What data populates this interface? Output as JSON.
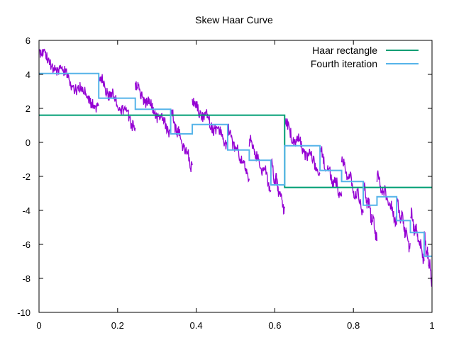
{
  "chart_data": {
    "type": "line",
    "title": "Skew Haar Curve",
    "xlabel": "",
    "ylabel": "",
    "xlim": [
      0,
      1
    ],
    "ylim": [
      -10,
      6
    ],
    "xticks": [
      0,
      0.2,
      0.4,
      0.6,
      0.8,
      1
    ],
    "xtick_labels": [
      "0",
      "0.2",
      "0.4",
      "0.6",
      "0.8",
      "1"
    ],
    "yticks": [
      6,
      4,
      2,
      0,
      -2,
      -4,
      -6,
      -8,
      -10
    ],
    "ytick_labels": [
      "6",
      "4",
      "2",
      "0",
      "-2",
      "-4",
      "-6",
      "-8",
      "-10"
    ],
    "grid": false,
    "legend_position": "top-right",
    "series": [
      {
        "name": "Haar rectangle",
        "color": "#009e73",
        "style": "step",
        "steps": [
          {
            "x0": 0,
            "x1": 0.625,
            "y": 1.6
          },
          {
            "x0": 0.625,
            "x1": 1,
            "y": -2.65
          }
        ]
      },
      {
        "name": "Fourth iteration",
        "color": "#56b4e9",
        "style": "step",
        "steps": [
          {
            "x0": 0,
            "x1": 0.152,
            "y": 4.05
          },
          {
            "x0": 0.152,
            "x1": 0.245,
            "y": 2.6
          },
          {
            "x0": 0.245,
            "x1": 0.335,
            "y": 1.95
          },
          {
            "x0": 0.335,
            "x1": 0.39,
            "y": 0.5
          },
          {
            "x0": 0.39,
            "x1": 0.48,
            "y": 1.05
          },
          {
            "x0": 0.48,
            "x1": 0.535,
            "y": -0.45
          },
          {
            "x0": 0.535,
            "x1": 0.59,
            "y": -1.05
          },
          {
            "x0": 0.59,
            "x1": 0.625,
            "y": -2.5
          },
          {
            "x0": 0.625,
            "x1": 0.715,
            "y": -0.2
          },
          {
            "x0": 0.715,
            "x1": 0.77,
            "y": -1.65
          },
          {
            "x0": 0.77,
            "x1": 0.825,
            "y": -2.3
          },
          {
            "x0": 0.825,
            "x1": 0.86,
            "y": -3.7
          },
          {
            "x0": 0.86,
            "x1": 0.91,
            "y": -3.2
          },
          {
            "x0": 0.91,
            "x1": 0.945,
            "y": -4.6
          },
          {
            "x0": 0.945,
            "x1": 0.98,
            "y": -5.3
          },
          {
            "x0": 0.98,
            "x1": 1,
            "y": -6.7
          }
        ]
      },
      {
        "name": "",
        "color": "#9400d3",
        "style": "jagged",
        "segments": [
          {
            "x0": 0,
            "x1": 0.152,
            "y0": 5.3,
            "y1": 2.1
          },
          {
            "x0": 0.152,
            "x1": 0.245,
            "y0": 3.7,
            "y1": 1.0
          },
          {
            "x0": 0.245,
            "x1": 0.335,
            "y0": 3.2,
            "y1": 0.7
          },
          {
            "x0": 0.335,
            "x1": 0.39,
            "y0": 1.7,
            "y1": -1.4
          },
          {
            "x0": 0.39,
            "x1": 0.48,
            "y0": 2.3,
            "y1": 0.0
          },
          {
            "x0": 0.48,
            "x1": 0.535,
            "y0": 0.7,
            "y1": -1.9
          },
          {
            "x0": 0.535,
            "x1": 0.59,
            "y0": 0.1,
            "y1": -2.6
          },
          {
            "x0": 0.59,
            "x1": 0.625,
            "y0": -1.3,
            "y1": -4.0
          },
          {
            "x0": 0.625,
            "x1": 0.715,
            "y0": 1.0,
            "y1": -1.6
          },
          {
            "x0": 0.715,
            "x1": 0.77,
            "y0": -0.6,
            "y1": -3.2
          },
          {
            "x0": 0.77,
            "x1": 0.825,
            "y0": -1.1,
            "y1": -3.9
          },
          {
            "x0": 0.825,
            "x1": 0.86,
            "y0": -2.6,
            "y1": -5.5
          },
          {
            "x0": 0.86,
            "x1": 0.91,
            "y0": -2.0,
            "y1": -4.6
          },
          {
            "x0": 0.91,
            "x1": 0.945,
            "y0": -3.5,
            "y1": -6.2
          },
          {
            "x0": 0.945,
            "x1": 0.98,
            "y0": -4.2,
            "y1": -6.9
          },
          {
            "x0": 0.98,
            "x1": 1,
            "y0": -5.6,
            "y1": -8.1
          }
        ]
      }
    ]
  }
}
